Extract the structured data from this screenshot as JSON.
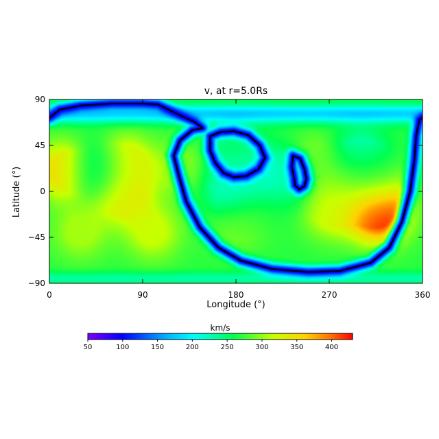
{
  "chart_data": {
    "type": "heatmap",
    "title": "v, at r=5.0Rs",
    "xlabel": "Longitude (°)",
    "ylabel": "Latitude (°)",
    "xlim": [
      0,
      360
    ],
    "ylim": [
      -90,
      90
    ],
    "xticks": [
      0,
      90,
      180,
      270,
      360
    ],
    "yticks": [
      90,
      45,
      0,
      -45,
      -90
    ],
    "grid": false,
    "colorbar": {
      "label": "km/s",
      "range": [
        50,
        430
      ],
      "ticks": [
        50,
        100,
        150,
        200,
        250,
        300,
        350,
        400
      ],
      "placement": "bottom"
    },
    "features": [
      {
        "kind": "max",
        "lon": 15,
        "lat": 20,
        "value": 360
      },
      {
        "kind": "max",
        "lon": 72,
        "lat": 28,
        "value": 340
      },
      {
        "kind": "max",
        "lon": 70,
        "lat": -2,
        "value": 345
      },
      {
        "kind": "max",
        "lon": 125,
        "lat": 22,
        "value": 300
      },
      {
        "kind": "max",
        "lon": 100,
        "lat": -40,
        "value": 315
      },
      {
        "kind": "max",
        "lon": 30,
        "lat": -40,
        "value": 305
      },
      {
        "kind": "max",
        "lon": 255,
        "lat": 30,
        "value": 300
      },
      {
        "kind": "max",
        "lon": 292,
        "lat": 12,
        "value": 320
      },
      {
        "kind": "max",
        "lon": 318,
        "lat": 18,
        "value": 290
      },
      {
        "kind": "max",
        "lon": 272,
        "lat": -20,
        "value": 320
      },
      {
        "kind": "max",
        "lon": 318,
        "lat": -22,
        "value": 420
      },
      {
        "kind": "max",
        "lon": 182,
        "lat": -35,
        "value": 290
      },
      {
        "kind": "max",
        "lon": 220,
        "lat": -25,
        "value": 270
      },
      {
        "kind": "max",
        "lon": 178,
        "lat": 45,
        "value": 250
      },
      {
        "kind": "min",
        "lon": 300,
        "lat": 30,
        "value": 195
      },
      {
        "kind": "min",
        "lon": 225,
        "lat": 15,
        "value": 210
      },
      {
        "kind": "min",
        "lon": 46,
        "lat": 20,
        "value": 200
      },
      {
        "kind": "min",
        "lon": 175,
        "lat": 5,
        "value": 215
      }
    ],
    "contour_lines": [
      {
        "name": "neutral-line",
        "points": [
          [
            0,
            72
          ],
          [
            10,
            80
          ],
          [
            30,
            84
          ],
          [
            60,
            86
          ],
          [
            90,
            86
          ],
          [
            105,
            85
          ],
          [
            115,
            80
          ],
          [
            125,
            75
          ],
          [
            140,
            68
          ],
          [
            148,
            62
          ],
          [
            138,
            60
          ],
          [
            126,
            50
          ],
          [
            120,
            35
          ],
          [
            125,
            15
          ],
          [
            132,
            -10
          ],
          [
            145,
            -35
          ],
          [
            163,
            -55
          ],
          [
            185,
            -68
          ],
          [
            215,
            -76
          ],
          [
            250,
            -79
          ],
          [
            280,
            -78
          ],
          [
            310,
            -70
          ],
          [
            328,
            -55
          ],
          [
            340,
            -30
          ],
          [
            348,
            0
          ],
          [
            352,
            30
          ],
          [
            354,
            55
          ],
          [
            357,
            70
          ],
          [
            360,
            72
          ]
        ]
      },
      {
        "name": "closed-loop-a",
        "points": [
          [
            155,
            54
          ],
          [
            165,
            58
          ],
          [
            178,
            59
          ],
          [
            192,
            55
          ],
          [
            203,
            45
          ],
          [
            208,
            33
          ],
          [
            202,
            22
          ],
          [
            190,
            15
          ],
          [
            178,
            14
          ],
          [
            168,
            18
          ],
          [
            160,
            28
          ],
          [
            155,
            40
          ],
          [
            155,
            54
          ]
        ]
      },
      {
        "name": "closed-loop-b",
        "points": [
          [
            235,
            35
          ],
          [
            242,
            32
          ],
          [
            246,
            22
          ],
          [
            248,
            12
          ],
          [
            246,
            5
          ],
          [
            241,
            2
          ],
          [
            237,
            6
          ],
          [
            236,
            14
          ],
          [
            234,
            24
          ],
          [
            235,
            35
          ]
        ]
      }
    ]
  }
}
